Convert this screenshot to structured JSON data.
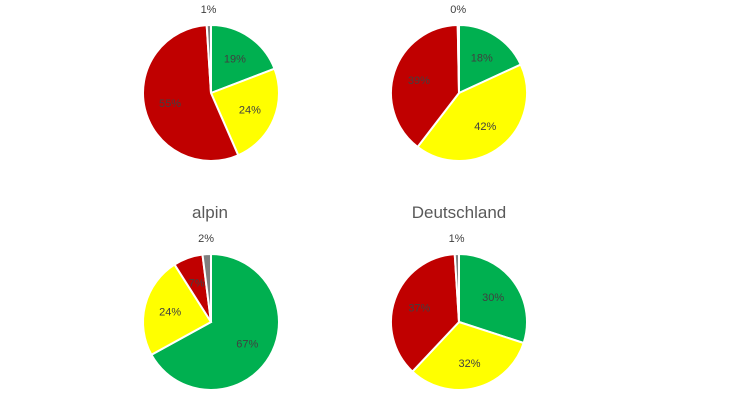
{
  "colors": {
    "green": "#00b050",
    "yellow": "#ffff00",
    "red": "#c00000",
    "gray": "#7f7f7f",
    "label_text": "#404040"
  },
  "chart_data": [
    {
      "type": "pie",
      "title": "",
      "slices": [
        {
          "label": "19%",
          "value": 19,
          "color": "#00b050"
        },
        {
          "label": "24%",
          "value": 24,
          "color": "#ffff00"
        },
        {
          "label": "55%",
          "value": 55,
          "color": "#c00000"
        },
        {
          "label": "1%",
          "value": 1,
          "color": "#7f7f7f"
        }
      ]
    },
    {
      "type": "pie",
      "title": "",
      "slices": [
        {
          "label": "18%",
          "value": 18,
          "color": "#00b050"
        },
        {
          "label": "42%",
          "value": 42,
          "color": "#ffff00"
        },
        {
          "label": "39%",
          "value": 39,
          "color": "#c00000"
        },
        {
          "label": "0%",
          "value": 0.3,
          "color": "#7f7f7f"
        }
      ]
    },
    {
      "type": "pie",
      "title": "alpin",
      "slices": [
        {
          "label": "67%",
          "value": 67,
          "color": "#00b050"
        },
        {
          "label": "24%",
          "value": 24,
          "color": "#ffff00"
        },
        {
          "label": "7%",
          "value": 7,
          "color": "#c00000"
        },
        {
          "label": "2%",
          "value": 2,
          "color": "#7f7f7f"
        }
      ]
    },
    {
      "type": "pie",
      "title": "Deutschland",
      "slices": [
        {
          "label": "30%",
          "value": 30,
          "color": "#00b050"
        },
        {
          "label": "32%",
          "value": 32,
          "color": "#ffff00"
        },
        {
          "label": "37%",
          "value": 37,
          "color": "#c00000"
        },
        {
          "label": "1%",
          "value": 1,
          "color": "#7f7f7f"
        }
      ]
    }
  ]
}
